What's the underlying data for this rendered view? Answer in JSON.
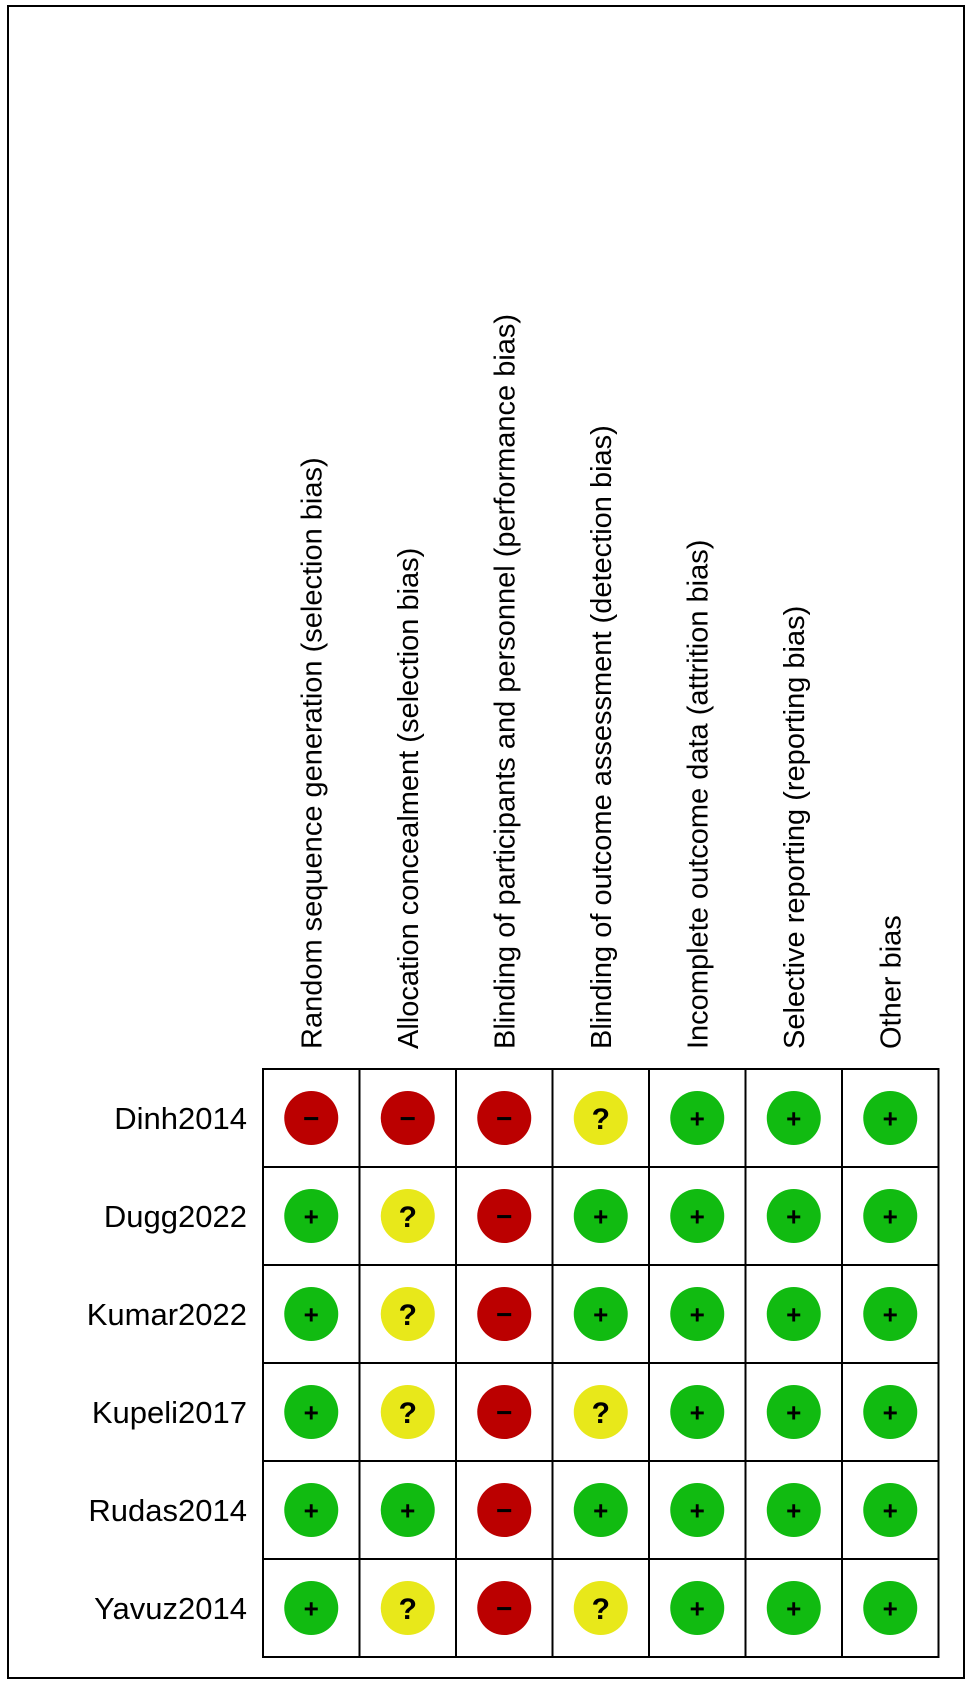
{
  "chart_data": {
    "type": "table",
    "columns": [
      "Random sequence generation (selection bias)",
      "Allocation concealment (selection bias)",
      "Blinding of participants and personnel (performance bias)",
      "Blinding of outcome assessment (detection bias)",
      "Incomplete outcome data (attrition bias)",
      "Selective reporting (reporting bias)",
      "Other bias"
    ],
    "rows": [
      {
        "study": "Dinh2014",
        "judgements": [
          "high",
          "high",
          "high",
          "unclear",
          "low",
          "low",
          "low"
        ]
      },
      {
        "study": "Dugg2022",
        "judgements": [
          "low",
          "unclear",
          "high",
          "low",
          "low",
          "low",
          "low"
        ]
      },
      {
        "study": "Kumar2022",
        "judgements": [
          "low",
          "unclear",
          "high",
          "low",
          "low",
          "low",
          "low"
        ]
      },
      {
        "study": "Kupeli2017",
        "judgements": [
          "low",
          "unclear",
          "high",
          "unclear",
          "low",
          "low",
          "low"
        ]
      },
      {
        "study": "Rudas2014",
        "judgements": [
          "low",
          "low",
          "high",
          "low",
          "low",
          "low",
          "low"
        ]
      },
      {
        "study": "Yavuz2014",
        "judgements": [
          "low",
          "unclear",
          "high",
          "unclear",
          "low",
          "low",
          "low"
        ]
      }
    ],
    "legend": {
      "low": {
        "symbol": "+",
        "color": "#11bb11"
      },
      "unclear": {
        "symbol": "?",
        "color": "#e8e81a"
      },
      "high": {
        "symbol": "−",
        "color": "#bb0000"
      }
    }
  }
}
